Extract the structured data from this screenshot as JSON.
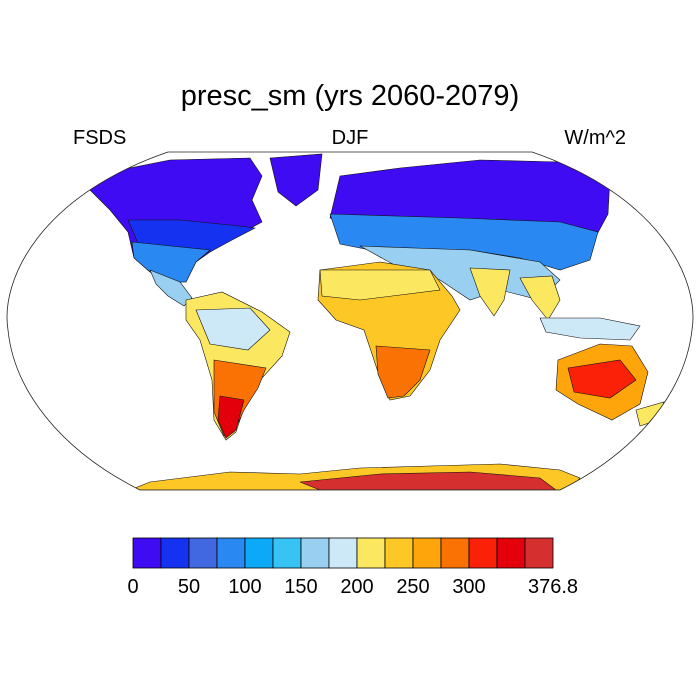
{
  "title": "presc_sm (yrs 2060-2079)",
  "left_label": "FSDS",
  "center_label": "DJF",
  "right_label": "W/m^2",
  "colorbar": {
    "colors": [
      "#3f0bf2",
      "#1532f0",
      "#4168e0",
      "#2a88f3",
      "#0ba9f8",
      "#38c3f5",
      "#99cff0",
      "#cde8f7",
      "#fce860",
      "#fdc726",
      "#fda50b",
      "#fb7204",
      "#fb2108",
      "#e3000b",
      "#d62f2f"
    ],
    "tick_labels": [
      "0",
      "50",
      "100",
      "150",
      "200",
      "250",
      "300",
      "376.8"
    ],
    "tick_boundary_index": [
      0,
      2,
      4,
      6,
      8,
      10,
      12,
      15
    ]
  },
  "legend_summary": "Shaded land surface: downwelling shortwave flux (FSDS), DJF mean, W/m^2"
}
